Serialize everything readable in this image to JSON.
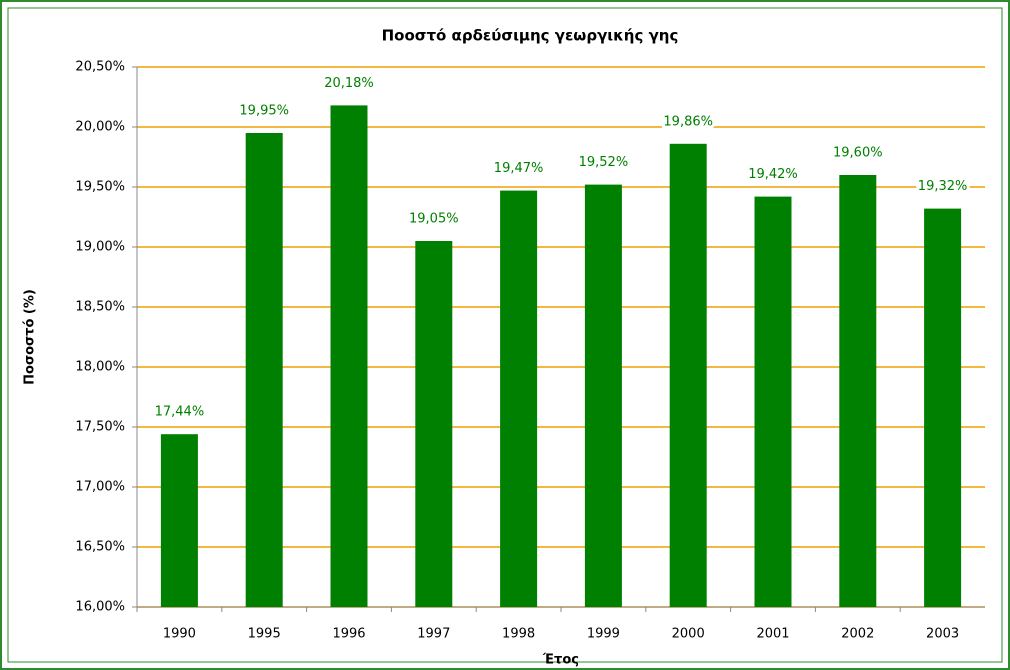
{
  "chart_data": {
    "type": "bar",
    "title": "Ποοστό αρδεύσιμης γεωργικής γης",
    "x_label": "Έτος",
    "y_label": "Ποσοστό (%)",
    "categories": [
      "1990",
      "1995",
      "1996",
      "1997",
      "1998",
      "1999",
      "2000",
      "2001",
      "2002",
      "2003"
    ],
    "values": [
      17.44,
      19.95,
      20.18,
      19.05,
      19.47,
      19.52,
      19.86,
      19.42,
      19.6,
      19.32
    ],
    "value_labels": [
      "17,44%",
      "19,95%",
      "20,18%",
      "19,05%",
      "19,47%",
      "19,52%",
      "19,86%",
      "19,42%",
      "19,60%",
      "19,32%"
    ],
    "color": "#008000",
    "ylim": [
      16,
      20.5
    ],
    "yticks": [
      {
        "value": 16,
        "label": "16,00%"
      },
      {
        "value": 16.5,
        "label": "16,50%"
      },
      {
        "value": 17,
        "label": "17,00%"
      },
      {
        "value": 17.5,
        "label": "17,50%"
      },
      {
        "value": 18,
        "label": "18,00%"
      },
      {
        "value": 18.5,
        "label": "18,50%"
      },
      {
        "value": 19,
        "label": "19,00%"
      },
      {
        "value": 19.5,
        "label": "19,50%"
      },
      {
        "value": 20,
        "label": "20,00%"
      },
      {
        "value": 20.5,
        "label": "20,50%"
      }
    ],
    "grid": true
  }
}
